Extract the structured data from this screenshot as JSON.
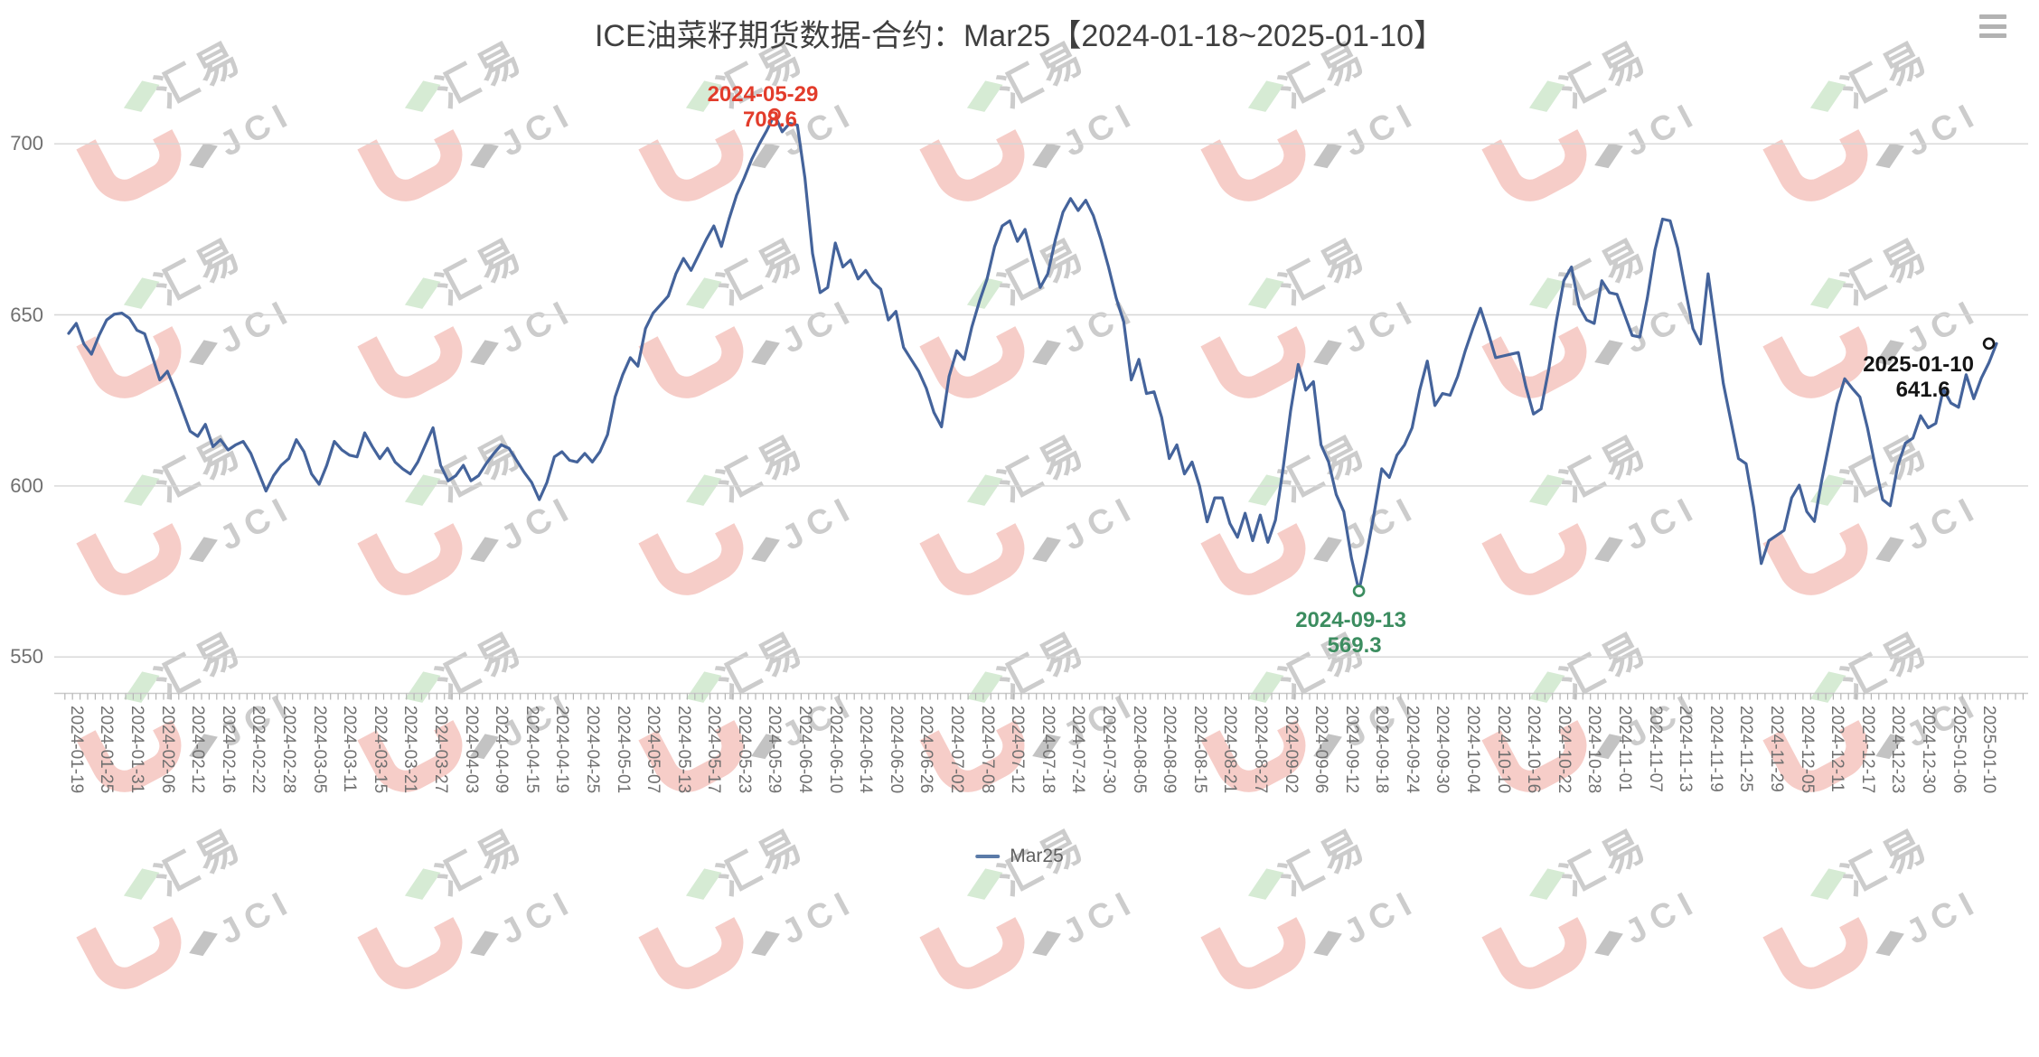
{
  "header": {
    "title": "ICE油菜籽期货数据-合约：Mar25【2024-01-18~2025-01-10】"
  },
  "toolbox": {
    "menu_icon": "hamburger-menu"
  },
  "legend": {
    "items": [
      {
        "label": "Mar25",
        "color": "#5b7ba8"
      }
    ]
  },
  "watermark": {
    "text_cn": "汇易",
    "text_en": "JCI",
    "colors": {
      "hook": "#f6c8c3",
      "diamond": "#d2e9d0",
      "text": "#c7c7c7",
      "shape": "#bdbdbd"
    }
  },
  "chart_data": {
    "type": "line",
    "series_name": "Mar25",
    "title": "ICE油菜籽期货数据-合约：Mar25【2024-01-18~2025-01-10】",
    "xlabel": "",
    "ylabel": "",
    "ylim": [
      540,
      720
    ],
    "grid": true,
    "legend_position": "bottom",
    "y_ticks": [
      550,
      600,
      650,
      700
    ],
    "y_tick_labels": [
      "550",
      "600",
      "650",
      "700"
    ],
    "x_label_first_index": 1,
    "x_label_step": 4,
    "x_tick_labels": [
      "2024-01-19",
      "2024-01-25",
      "2024-01-31",
      "2024-02-06",
      "2024-02-12",
      "2024-02-16",
      "2024-02-22",
      "2024-02-28",
      "2024-03-05",
      "2024-03-11",
      "2024-03-15",
      "2024-03-21",
      "2024-03-27",
      "2024-04-03",
      "2024-04-09",
      "2024-04-15",
      "2024-04-19",
      "2024-04-25",
      "2024-05-01",
      "2024-05-07",
      "2024-05-13",
      "2024-05-17",
      "2024-05-23",
      "2024-05-29",
      "2024-06-04",
      "2024-06-10",
      "2024-06-14",
      "2024-06-20",
      "2024-06-26",
      "2024-07-02",
      "2024-07-08",
      "2024-07-12",
      "2024-07-18",
      "2024-07-24",
      "2024-07-30",
      "2024-08-05",
      "2024-08-09",
      "2024-08-15",
      "2024-08-21",
      "2024-08-27",
      "2024-09-02",
      "2024-09-06",
      "2024-09-12",
      "2024-09-18",
      "2024-09-24",
      "2024-09-30",
      "2024-10-04",
      "2024-10-10",
      "2024-10-16",
      "2024-10-22",
      "2024-10-28",
      "2024-11-01",
      "2024-11-07",
      "2024-11-13",
      "2024-11-19",
      "2024-11-25",
      "2024-11-29",
      "2024-12-05",
      "2024-12-11",
      "2024-12-17",
      "2024-12-23",
      "2024-12-30",
      "2025-01-06",
      "2025-01-10"
    ],
    "values": [
      644.6,
      647.5,
      641.5,
      638.5,
      644,
      648.5,
      650.2,
      650.5,
      649,
      645.5,
      644.5,
      638,
      631,
      633.5,
      628,
      622,
      616,
      614.5,
      618,
      611.5,
      613.5,
      610.5,
      612,
      613,
      609.5,
      604,
      598.5,
      603,
      606,
      608,
      613.5,
      610,
      603.5,
      600.5,
      606,
      613,
      610.5,
      609,
      608.5,
      615.5,
      611.5,
      608,
      611,
      607,
      605,
      603.5,
      607,
      612,
      617,
      606,
      601.5,
      603,
      606,
      601.5,
      603,
      606.5,
      609.5,
      612,
      611,
      607.5,
      604,
      601,
      596,
      601,
      608.5,
      610,
      607.5,
      607,
      609.5,
      607,
      610,
      615,
      626,
      632.5,
      637.5,
      635,
      646,
      650.5,
      653,
      655.5,
      662,
      666.5,
      663,
      667.5,
      672,
      676,
      670,
      678,
      685,
      690,
      695.5,
      700,
      704,
      708.6,
      703.5,
      706,
      705.5,
      690,
      668,
      656.5,
      658,
      671,
      664,
      666,
      660.5,
      663,
      659.5,
      657.5,
      648.5,
      651,
      640.5,
      637,
      633.5,
      628.5,
      621.5,
      617.3,
      632,
      639.5,
      637,
      646.5,
      654,
      660.5,
      670,
      676,
      677.5,
      671.5,
      675,
      666.5,
      658,
      662,
      672,
      680,
      684,
      680.5,
      683.5,
      679,
      672,
      664,
      655,
      648,
      631,
      637,
      627,
      627.5,
      620,
      608,
      612,
      603.5,
      607,
      600,
      589.5,
      596.5,
      596.5,
      589,
      585,
      592,
      584,
      591.5,
      583.5,
      590,
      605,
      622,
      635.5,
      628,
      630.5,
      612,
      607,
      597.5,
      592.5,
      579,
      569.3,
      580,
      592,
      605,
      602.5,
      609,
      612,
      617,
      628,
      636.5,
      623.5,
      627,
      626.5,
      632,
      639.5,
      646,
      651.9,
      645,
      637.5,
      638,
      638.5,
      639,
      629,
      621,
      622.5,
      634,
      648,
      660,
      664,
      652.5,
      648.5,
      647.5,
      660,
      656.5,
      656,
      650,
      644,
      643.5,
      655,
      669,
      678,
      677.5,
      669.5,
      657.5,
      646,
      641.5,
      662,
      646,
      630,
      619,
      608,
      606.5,
      593.7,
      577.3,
      584,
      585.5,
      587,
      596.5,
      600.2,
      592.5,
      589.6,
      602,
      613,
      624,
      631.3,
      628.5,
      626,
      617,
      606,
      596,
      594.2,
      606,
      612.5,
      614,
      620.5,
      617,
      618.3,
      628.3,
      624.2,
      623,
      632.5,
      625.5,
      631.5,
      636,
      641.6
    ],
    "line_color": "#44639b",
    "colors": {
      "grid": "#d6d6d6",
      "axis": "#c9c9c9",
      "tick": "#b5b5b5"
    },
    "annotations": {
      "max": {
        "date": "2024-05-29",
        "value": "708.6",
        "value_num": 708.6,
        "index": 93,
        "color": "#e23c2b"
      },
      "min": {
        "date": "2024-09-13",
        "value": "569.3",
        "value_num": 569.3,
        "index": 170,
        "color": "#3c8d60"
      },
      "end": {
        "date": "2025-01-10",
        "value": "641.6",
        "value_num": 641.6,
        "index": 253,
        "color": "#141414"
      }
    }
  }
}
